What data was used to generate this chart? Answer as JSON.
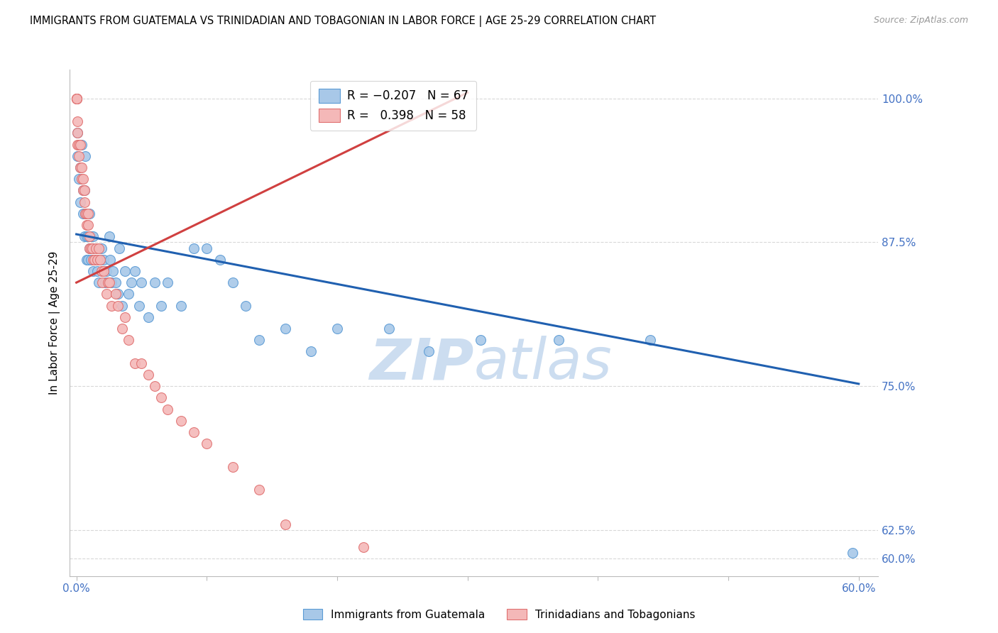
{
  "title": "IMMIGRANTS FROM GUATEMALA VS TRINIDADIAN AND TOBAGONIAN IN LABOR FORCE | AGE 25-29 CORRELATION CHART",
  "source": "Source: ZipAtlas.com",
  "ylabel": "In Labor Force | Age 25-29",
  "legend_labels_bottom": [
    "Immigrants from Guatemala",
    "Trinidadians and Tobagonians"
  ],
  "ytick_values": [
    0.6,
    0.625,
    0.75,
    0.875,
    1.0
  ],
  "ytick_labels": [
    "60.0%",
    "62.5%",
    "75.0%",
    "87.5%",
    "100.0%"
  ],
  "xtick_values": [
    0.0,
    0.1,
    0.2,
    0.3,
    0.4,
    0.5,
    0.6
  ],
  "xtick_labels": [
    "0.0%",
    "",
    "",
    "",
    "",
    "",
    "60.0%"
  ],
  "xlim": [
    -0.005,
    0.615
  ],
  "ylim": [
    0.585,
    1.025
  ],
  "blue_color": "#a8c8e8",
  "pink_color": "#f4b8b8",
  "blue_edge": "#5b9bd5",
  "pink_edge": "#e07070",
  "trend_blue": "#2060b0",
  "trend_pink": "#d04040",
  "grid_color": "#d8d8d8",
  "axis_color": "#4472c4",
  "watermark_color": "#ccddf0",
  "blue_trend_x": [
    0.0,
    0.6
  ],
  "blue_trend_y": [
    0.882,
    0.752
  ],
  "pink_trend_x": [
    0.0,
    0.3
  ],
  "pink_trend_y": [
    0.84,
    1.005
  ],
  "blue_x": [
    0.001,
    0.001,
    0.002,
    0.003,
    0.003,
    0.004,
    0.005,
    0.005,
    0.006,
    0.006,
    0.007,
    0.007,
    0.008,
    0.008,
    0.009,
    0.009,
    0.01,
    0.01,
    0.011,
    0.011,
    0.012,
    0.013,
    0.013,
    0.014,
    0.015,
    0.016,
    0.017,
    0.018,
    0.019,
    0.02,
    0.021,
    0.022,
    0.023,
    0.025,
    0.026,
    0.027,
    0.028,
    0.03,
    0.032,
    0.033,
    0.035,
    0.037,
    0.04,
    0.042,
    0.045,
    0.048,
    0.05,
    0.055,
    0.06,
    0.065,
    0.07,
    0.08,
    0.09,
    0.1,
    0.11,
    0.12,
    0.13,
    0.14,
    0.16,
    0.18,
    0.2,
    0.24,
    0.27,
    0.31,
    0.37,
    0.44,
    0.595
  ],
  "blue_y": [
    0.97,
    0.95,
    0.93,
    0.91,
    0.94,
    0.96,
    0.92,
    0.9,
    0.88,
    0.92,
    0.9,
    0.95,
    0.88,
    0.86,
    0.86,
    0.88,
    0.87,
    0.9,
    0.86,
    0.88,
    0.87,
    0.85,
    0.88,
    0.86,
    0.86,
    0.85,
    0.84,
    0.86,
    0.87,
    0.85,
    0.86,
    0.84,
    0.85,
    0.88,
    0.86,
    0.84,
    0.85,
    0.84,
    0.83,
    0.87,
    0.82,
    0.85,
    0.83,
    0.84,
    0.85,
    0.82,
    0.84,
    0.81,
    0.84,
    0.82,
    0.84,
    0.82,
    0.87,
    0.87,
    0.86,
    0.84,
    0.82,
    0.79,
    0.8,
    0.78,
    0.8,
    0.8,
    0.78,
    0.79,
    0.79,
    0.79,
    0.605
  ],
  "pink_x": [
    0.0,
    0.0,
    0.0,
    0.0,
    0.0,
    0.001,
    0.001,
    0.001,
    0.002,
    0.002,
    0.003,
    0.003,
    0.004,
    0.004,
    0.005,
    0.005,
    0.006,
    0.006,
    0.007,
    0.008,
    0.008,
    0.009,
    0.009,
    0.01,
    0.01,
    0.011,
    0.012,
    0.013,
    0.014,
    0.015,
    0.016,
    0.017,
    0.018,
    0.019,
    0.02,
    0.021,
    0.023,
    0.024,
    0.025,
    0.027,
    0.03,
    0.032,
    0.035,
    0.037,
    0.04,
    0.045,
    0.05,
    0.055,
    0.06,
    0.065,
    0.07,
    0.08,
    0.09,
    0.1,
    0.12,
    0.14,
    0.16,
    0.22
  ],
  "pink_y": [
    1.0,
    1.0,
    1.0,
    1.0,
    1.0,
    0.98,
    0.97,
    0.96,
    0.96,
    0.95,
    0.94,
    0.96,
    0.94,
    0.93,
    0.92,
    0.93,
    0.91,
    0.92,
    0.9,
    0.9,
    0.89,
    0.89,
    0.9,
    0.88,
    0.87,
    0.87,
    0.87,
    0.86,
    0.86,
    0.87,
    0.86,
    0.87,
    0.86,
    0.85,
    0.84,
    0.85,
    0.83,
    0.84,
    0.84,
    0.82,
    0.83,
    0.82,
    0.8,
    0.81,
    0.79,
    0.77,
    0.77,
    0.76,
    0.75,
    0.74,
    0.73,
    0.72,
    0.71,
    0.7,
    0.68,
    0.66,
    0.63,
    0.61
  ],
  "marker_size": 100,
  "marker_lw": 0.8
}
